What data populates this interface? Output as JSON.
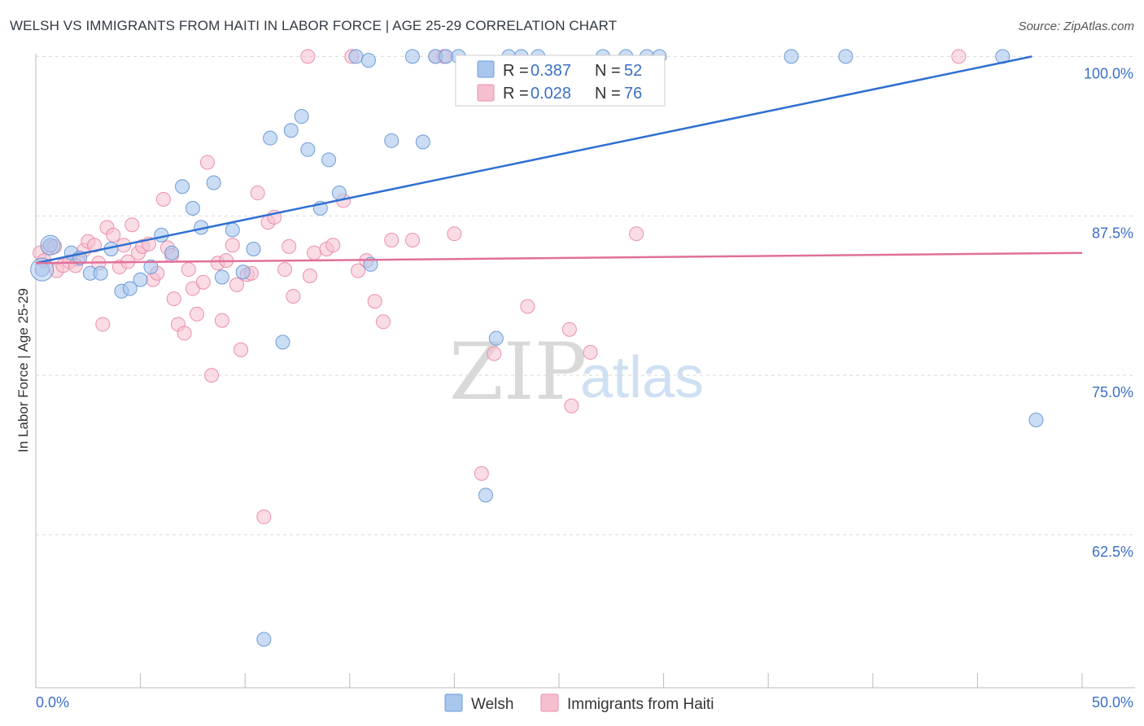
{
  "title": "WELSH VS IMMIGRANTS FROM HAITI IN LABOR FORCE | AGE 25-29 CORRELATION CHART",
  "source": "Source: ZipAtlas.com",
  "watermark": {
    "zip": "ZIP",
    "atlas": "atlas"
  },
  "colors": {
    "blue_fill": "#a9c6ec",
    "blue_stroke": "#6d9bd8",
    "blue_line": "#2f6fd0",
    "pink_fill": "#f6bfd0",
    "pink_stroke": "#ec8fab",
    "pink_line": "#e0709a",
    "grid": "#d9d9d9",
    "tick_text": "#3a6fc6"
  },
  "legend": {
    "rows": [
      {
        "r_label": "R =",
        "r_value": "0.387",
        "n_label": "N =",
        "n_value": "52"
      },
      {
        "r_label": "R =",
        "r_value": "0.028",
        "n_label": "N =",
        "n_value": "76"
      }
    ]
  },
  "bottom_legend": [
    "Welsh",
    "Immigrants from Haiti"
  ],
  "chart_data": {
    "type": "scatter",
    "title": "WELSH VS IMMIGRANTS FROM HAITI IN LABOR FORCE | AGE 25-29 CORRELATION CHART",
    "xlabel": "",
    "ylabel": "In Labor Force | Age 25-29",
    "xlim": [
      0,
      50
    ],
    "ylim": [
      50.5,
      100.6
    ],
    "x_tick_labels": [
      "0.0%",
      "50.0%"
    ],
    "y_ticks": [
      62.5,
      75.0,
      87.5,
      100.0
    ],
    "y_tick_labels": [
      "62.5%",
      "75.0%",
      "87.5%",
      "100.0%"
    ],
    "series": [
      {
        "name": "Welsh",
        "R": 0.387,
        "N": 52,
        "trend": {
          "x": [
            0,
            47.6
          ],
          "y": [
            83.8,
            100.0
          ]
        },
        "points": [
          [
            0.3,
            83.3
          ],
          [
            0.7,
            85.2
          ],
          [
            1.7,
            84.6
          ],
          [
            2.1,
            84.2
          ],
          [
            2.6,
            83.0
          ],
          [
            3.1,
            83.0
          ],
          [
            3.6,
            84.9
          ],
          [
            4.1,
            81.6
          ],
          [
            4.5,
            81.8
          ],
          [
            5.0,
            82.5
          ],
          [
            5.5,
            83.5
          ],
          [
            6.0,
            86.0
          ],
          [
            6.5,
            84.6
          ],
          [
            7.0,
            89.8
          ],
          [
            7.5,
            88.1
          ],
          [
            7.9,
            86.6
          ],
          [
            8.5,
            90.1
          ],
          [
            8.9,
            82.7
          ],
          [
            9.4,
            86.4
          ],
          [
            9.9,
            83.1
          ],
          [
            10.4,
            84.9
          ],
          [
            11.2,
            93.6
          ],
          [
            12.2,
            94.2
          ],
          [
            12.7,
            95.3
          ],
          [
            13.0,
            92.7
          ],
          [
            13.6,
            88.1
          ],
          [
            14.0,
            91.9
          ],
          [
            14.5,
            89.3
          ],
          [
            15.3,
            100.0
          ],
          [
            15.9,
            99.7
          ],
          [
            16.0,
            83.7
          ],
          [
            17.0,
            93.4
          ],
          [
            18.0,
            100.0
          ],
          [
            18.5,
            93.3
          ],
          [
            19.1,
            100.0
          ],
          [
            19.6,
            100.0
          ],
          [
            20.2,
            100.0
          ],
          [
            21.5,
            65.6
          ],
          [
            22.0,
            77.9
          ],
          [
            22.6,
            100.0
          ],
          [
            23.2,
            100.0
          ],
          [
            24.0,
            100.0
          ],
          [
            27.1,
            100.0
          ],
          [
            28.2,
            100.0
          ],
          [
            29.2,
            100.0
          ],
          [
            29.8,
            100.0
          ],
          [
            36.1,
            100.0
          ],
          [
            38.7,
            100.0
          ],
          [
            46.2,
            100.0
          ],
          [
            47.8,
            71.5
          ],
          [
            10.9,
            54.3
          ],
          [
            11.8,
            77.6
          ]
        ]
      },
      {
        "name": "Immigrants from Haiti",
        "R": 0.028,
        "N": 76,
        "trend": {
          "x": [
            0,
            50
          ],
          "y": [
            83.8,
            84.6
          ]
        },
        "points": [
          [
            0.2,
            84.6
          ],
          [
            0.4,
            84.0
          ],
          [
            0.6,
            85.0
          ],
          [
            1.0,
            83.2
          ],
          [
            1.3,
            83.6
          ],
          [
            1.6,
            83.9
          ],
          [
            2.0,
            84.1
          ],
          [
            2.3,
            84.8
          ],
          [
            2.5,
            85.5
          ],
          [
            2.8,
            85.2
          ],
          [
            3.0,
            83.8
          ],
          [
            3.2,
            79.0
          ],
          [
            3.4,
            86.6
          ],
          [
            3.7,
            86.0
          ],
          [
            4.0,
            83.5
          ],
          [
            4.2,
            85.2
          ],
          [
            4.4,
            83.9
          ],
          [
            4.6,
            86.8
          ],
          [
            4.9,
            84.6
          ],
          [
            5.1,
            85.1
          ],
          [
            5.4,
            85.3
          ],
          [
            5.6,
            82.5
          ],
          [
            5.8,
            83.0
          ],
          [
            6.1,
            88.8
          ],
          [
            6.3,
            85.0
          ],
          [
            6.5,
            84.4
          ],
          [
            6.6,
            81.0
          ],
          [
            6.8,
            79.0
          ],
          [
            7.1,
            78.3
          ],
          [
            7.3,
            83.3
          ],
          [
            7.5,
            81.8
          ],
          [
            7.7,
            79.8
          ],
          [
            8.0,
            82.3
          ],
          [
            8.2,
            91.7
          ],
          [
            8.4,
            75.0
          ],
          [
            8.7,
            83.8
          ],
          [
            8.9,
            79.3
          ],
          [
            9.1,
            84.0
          ],
          [
            9.4,
            85.2
          ],
          [
            9.6,
            82.1
          ],
          [
            9.8,
            77.0
          ],
          [
            10.1,
            82.9
          ],
          [
            10.3,
            83.0
          ],
          [
            10.6,
            89.3
          ],
          [
            10.9,
            63.9
          ],
          [
            11.1,
            87.0
          ],
          [
            11.4,
            87.4
          ],
          [
            11.9,
            83.3
          ],
          [
            12.1,
            85.1
          ],
          [
            12.3,
            81.2
          ],
          [
            13.0,
            100.0
          ],
          [
            13.1,
            82.8
          ],
          [
            13.3,
            84.6
          ],
          [
            13.9,
            84.9
          ],
          [
            14.2,
            85.2
          ],
          [
            14.7,
            88.7
          ],
          [
            15.1,
            100.0
          ],
          [
            15.4,
            83.2
          ],
          [
            15.8,
            84.0
          ],
          [
            16.2,
            80.8
          ],
          [
            16.6,
            79.2
          ],
          [
            17.0,
            85.6
          ],
          [
            18.0,
            85.6
          ],
          [
            19.1,
            100.0
          ],
          [
            19.5,
            100.0
          ],
          [
            20.0,
            86.1
          ],
          [
            21.3,
            67.3
          ],
          [
            21.9,
            76.7
          ],
          [
            23.5,
            80.4
          ],
          [
            25.5,
            78.6
          ],
          [
            25.6,
            72.6
          ],
          [
            26.5,
            76.8
          ],
          [
            28.7,
            86.1
          ],
          [
            44.1,
            100.0
          ],
          [
            1.9,
            83.6
          ],
          [
            0.9,
            85.1
          ]
        ]
      }
    ]
  }
}
